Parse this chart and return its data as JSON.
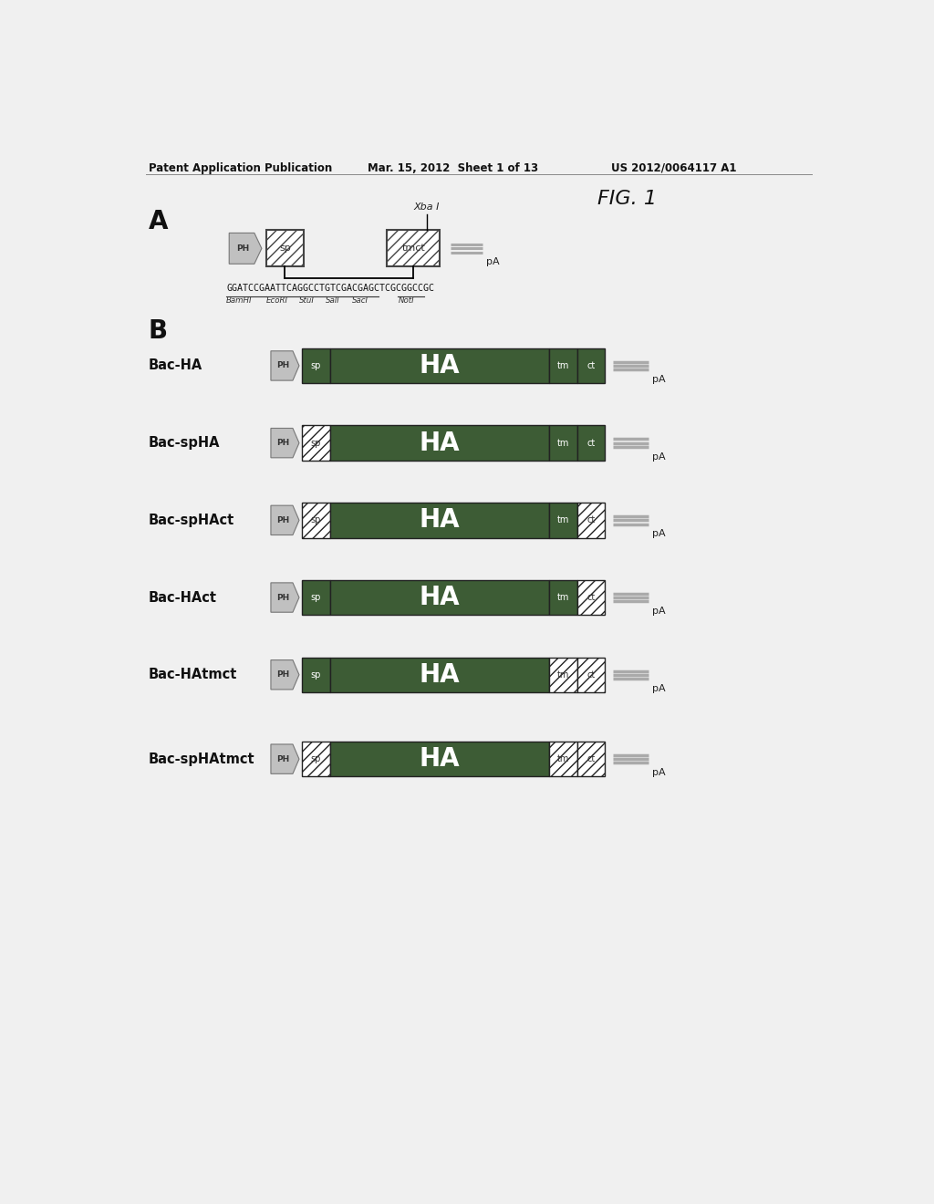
{
  "header_left": "Patent Application Publication",
  "header_mid": "Mar. 15, 2012  Sheet 1 of 13",
  "header_right": "US 2012/0064117 A1",
  "fig_label": "FIG. 1",
  "section_A": "A",
  "section_B": "B",
  "dna_seq": "GGATCCGAATTCAGGCCTGTCGACGAGCTCGCGGCCGC",
  "restriction_sites": [
    "BamHI",
    "EcoRI",
    "StuI",
    "SalI",
    "SacI",
    "NotI"
  ],
  "xba_label": "Xba I",
  "bg_color": "#f0f0f0",
  "dark_green": "#3d5c35",
  "box_ec": "#222222",
  "gray_arrow_color": "#b0b0b0",
  "pa_line_color": "#999999",
  "text_dark": "#111111",
  "constructs": [
    {
      "name": "Bac-HA",
      "sp_hatch": false,
      "ct_hatch": false,
      "tm_hatch": false
    },
    {
      "name": "Bac-spHA",
      "sp_hatch": true,
      "ct_hatch": false,
      "tm_hatch": false
    },
    {
      "name": "Bac-spHAct",
      "sp_hatch": true,
      "ct_hatch": true,
      "tm_hatch": false
    },
    {
      "name": "Bac-HAct",
      "sp_hatch": false,
      "ct_hatch": true,
      "tm_hatch": false
    },
    {
      "name": "Bac-HAtmct",
      "sp_hatch": false,
      "ct_hatch": true,
      "tm_hatch": true
    },
    {
      "name": "Bac-spHAtmct",
      "sp_hatch": true,
      "ct_hatch": true,
      "tm_hatch": true
    }
  ]
}
